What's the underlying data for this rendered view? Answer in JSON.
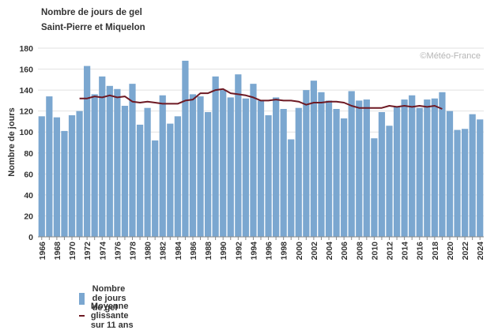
{
  "title": "Nombre de jours de gel",
  "subtitle": "Saint-Pierre et Miquelon",
  "credit": "©Météo-France",
  "colors": {
    "bar": "#7ba7d0",
    "line": "#6e1a24",
    "grid": "#e2e2e2",
    "axis": "#888888"
  },
  "legend": {
    "bar_label": "Nombre de jours de gel",
    "line_label": "Moyenne glissante sur 11 ans"
  },
  "chart_data": {
    "type": "bar",
    "title": "Nombre de jours de gel",
    "subtitle": "Saint-Pierre et Miquelon",
    "ylabel": "Nombre de jours",
    "xlabel": "",
    "ylim": [
      0,
      180
    ],
    "yticks": [
      0,
      20,
      40,
      60,
      80,
      100,
      120,
      140,
      160,
      180
    ],
    "grid": true,
    "legend_position": "bottom-left",
    "categories": [
      1966,
      1967,
      1968,
      1969,
      1970,
      1971,
      1972,
      1973,
      1974,
      1975,
      1976,
      1977,
      1978,
      1979,
      1980,
      1981,
      1982,
      1983,
      1984,
      1985,
      1986,
      1987,
      1988,
      1989,
      1990,
      1991,
      1992,
      1993,
      1994,
      1995,
      1996,
      1997,
      1998,
      1999,
      2000,
      2001,
      2002,
      2003,
      2004,
      2005,
      2006,
      2007,
      2008,
      2009,
      2010,
      2011,
      2012,
      2013,
      2014,
      2015,
      2016,
      2017,
      2018,
      2019,
      2020,
      2021,
      2022,
      2023,
      2024
    ],
    "xtick_labels": [
      "1966",
      "1968",
      "1970",
      "1972",
      "1974",
      "1976",
      "1978",
      "1980",
      "1982",
      "1984",
      "1986",
      "1988",
      "1990",
      "1992",
      "1994",
      "1996",
      "1998",
      "2000",
      "2002",
      "2004",
      "2006",
      "2008",
      "2010",
      "2012",
      "2014",
      "2016",
      "2018",
      "2020",
      "2022",
      "2024"
    ],
    "series": [
      {
        "name": "Nombre de jours de gel",
        "kind": "bar",
        "values": [
          115,
          134,
          114,
          101,
          116,
          120,
          163,
          136,
          153,
          144,
          141,
          125,
          146,
          107,
          123,
          92,
          135,
          108,
          115,
          168,
          136,
          134,
          119,
          153,
          140,
          133,
          155,
          132,
          146,
          130,
          116,
          133,
          122,
          93,
          123,
          140,
          149,
          138,
          130,
          122,
          113,
          139,
          130,
          131,
          94,
          119,
          106,
          124,
          131,
          135,
          123,
          131,
          132,
          138,
          120,
          102,
          103,
          117,
          112
        ]
      },
      {
        "name": "Moyenne glissante sur 11 ans",
        "kind": "line",
        "x": [
          1971,
          1972,
          1973,
          1974,
          1975,
          1976,
          1977,
          1978,
          1979,
          1980,
          1981,
          1982,
          1983,
          1984,
          1985,
          1986,
          1987,
          1988,
          1989,
          1990,
          1991,
          1992,
          1993,
          1994,
          1995,
          1996,
          1997,
          1998,
          1999,
          2000,
          2001,
          2002,
          2003,
          2004,
          2005,
          2006,
          2007,
          2008,
          2009,
          2010,
          2011,
          2012,
          2013,
          2014,
          2015,
          2016,
          2017,
          2018,
          2019
        ],
        "values": [
          132,
          132,
          134,
          133,
          135,
          133,
          134,
          129,
          128,
          129,
          128,
          127,
          127,
          127,
          130,
          131,
          137,
          137,
          140,
          141,
          137,
          136,
          135,
          133,
          130,
          130,
          131,
          130,
          130,
          129,
          126,
          128,
          128,
          129,
          129,
          128,
          125,
          123,
          123,
          123,
          123,
          125,
          124,
          125,
          124,
          125,
          124,
          125,
          122
        ]
      }
    ]
  }
}
